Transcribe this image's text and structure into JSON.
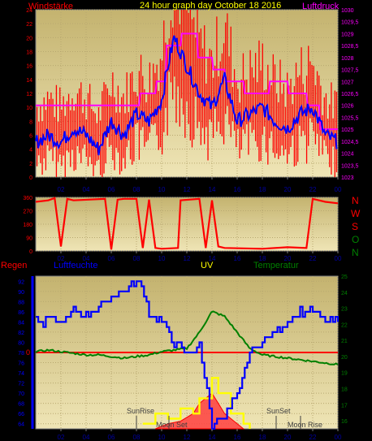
{
  "colors": {
    "plot_bg_top": "#c6b676",
    "plot_bg_bottom": "#f0e6b8",
    "wind": "#ff0000",
    "gust": "#ff0000",
    "pressure": "#ff00ff",
    "avg": "#0000ff",
    "direction": "#ff0000",
    "humidity": "#0000ff",
    "temperature": "#008000",
    "rain": "#ff0000",
    "uv": "#ffff00",
    "solar": "#ff0000",
    "label_red": "#ff0000",
    "label_magenta": "#ff00ff",
    "label_yellow": "#ffff00",
    "label_green": "#008000",
    "label_blue": "#0000ff",
    "tick": "#0000a0"
  },
  "header": {
    "wind_label": "Windstärke",
    "title": "24 hour graph day  October 18 2016",
    "pressure_label": "Luftdruck"
  },
  "panel2": {
    "compass": [
      "N",
      "W",
      "S",
      "O",
      "N"
    ]
  },
  "panel3": {
    "rain_label": "Regen",
    "humidity_label": "Luftfeuchte",
    "uv_label": "UV",
    "temp_label": "Temperatur",
    "sunrise": "SunRise",
    "moonset": "Moon Set",
    "sunset": "SunSet",
    "moonrise": "Moon Rise"
  },
  "chart_data": [
    {
      "type": "line",
      "x_ticks": [
        "02",
        "04",
        "06",
        "08",
        "10",
        "12",
        "14",
        "16",
        "18",
        "20",
        "22",
        "00"
      ],
      "y_left_ticks": [
        "0",
        "2",
        "4",
        "6",
        "8",
        "10",
        "12",
        "14",
        "16",
        "18",
        "20",
        "22",
        "24"
      ],
      "y_left_range": [
        0,
        24
      ],
      "y_right_ticks": [
        "1023",
        "1023,5",
        "1024",
        "1024,5",
        "1025",
        "1025,5",
        "1026",
        "1026,5",
        "1027",
        "1027,5",
        "1028",
        "1028,5",
        "1029",
        "1029,5",
        "1030"
      ],
      "y_right_range": [
        1023,
        1030
      ],
      "series": [
        {
          "name": "Windstärke",
          "axis": "left",
          "hours": [
            0,
            1,
            2,
            3,
            4,
            5,
            6,
            7,
            8,
            9,
            10,
            10.5,
            11,
            11.5,
            12,
            13,
            14,
            15,
            16,
            17,
            18,
            19,
            20,
            21,
            22,
            23,
            24
          ],
          "values": [
            5,
            6,
            5,
            7,
            6,
            4,
            8,
            6,
            9,
            8,
            11,
            16,
            20,
            18,
            16,
            12,
            10,
            14,
            8,
            9,
            10,
            8,
            7,
            9,
            10,
            6,
            5
          ]
        },
        {
          "name": "Luftdruck",
          "axis": "right",
          "hours": [
            0,
            2,
            6,
            7,
            8.2,
            8.3,
            9.5,
            9.6,
            10.3,
            10.4,
            11.5,
            11.6,
            12.8,
            12.9,
            14,
            14.1,
            15,
            15.1,
            16.5,
            16.6,
            18.5,
            18.6,
            20,
            20.1,
            21.5,
            21.6,
            22.5,
            22.6,
            24
          ],
          "values": [
            1026,
            1026,
            1026,
            1026,
            1026,
            1026.5,
            1026.5,
            1027,
            1027,
            1028.5,
            1028.5,
            1029,
            1029,
            1028,
            1028,
            1027.5,
            1027.5,
            1027,
            1027,
            1026.5,
            1026.5,
            1027,
            1027,
            1026.5,
            1026.5,
            1026,
            1026,
            1025,
            1025
          ]
        }
      ]
    },
    {
      "type": "line",
      "x_ticks": [
        "02",
        "04",
        "06",
        "08",
        "10",
        "12",
        "14",
        "16",
        "18",
        "20",
        "22",
        "00"
      ],
      "y_ticks": [
        "0",
        "90",
        "180",
        "270",
        "360"
      ],
      "y_range": [
        0,
        360
      ],
      "series": [
        {
          "name": "direction",
          "hours": [
            0,
            1,
            1.5,
            2,
            2.5,
            3,
            5.5,
            6,
            6.5,
            7,
            8,
            8.5,
            9,
            9.5,
            10,
            11.3,
            11.5,
            13,
            13.5,
            14,
            14.5,
            15,
            18,
            20,
            21.5,
            22,
            23,
            24
          ],
          "values": [
            330,
            340,
            355,
            30,
            350,
            340,
            350,
            10,
            345,
            350,
            350,
            20,
            345,
            20,
            15,
            20,
            340,
            350,
            20,
            340,
            30,
            20,
            15,
            25,
            20,
            350,
            330,
            320
          ]
        }
      ]
    },
    {
      "type": "line",
      "x_ticks": [
        "02",
        "04",
        "06",
        "08",
        "10",
        "12",
        "14",
        "16",
        "18",
        "20",
        "22",
        "00"
      ],
      "y_left_ticks": [
        "64",
        "66",
        "68",
        "70",
        "72",
        "74",
        "76",
        "78",
        "80",
        "82",
        "84",
        "86",
        "88",
        "90",
        "92"
      ],
      "y_left_range": [
        63,
        93
      ],
      "y_right_ticks": [
        "16",
        "17",
        "18",
        "19",
        "20",
        "21",
        "22",
        "23",
        "24",
        "25"
      ],
      "y_right_range": [
        15.5,
        25
      ],
      "rain_value": "0",
      "series": [
        {
          "name": "Luftfeuchte",
          "axis": "left",
          "hours": [
            0,
            0.5,
            1,
            2,
            3,
            4,
            5,
            6,
            7,
            8,
            8.5,
            9,
            10,
            11,
            12,
            13,
            13.5,
            14,
            15,
            16,
            17,
            18,
            19,
            20,
            21,
            22,
            23,
            24
          ],
          "values": [
            85,
            83,
            85,
            84,
            86,
            85,
            87,
            89,
            90,
            92,
            90,
            86,
            84,
            80,
            78,
            79,
            72,
            64,
            65,
            70,
            78,
            80,
            82,
            84,
            86,
            86,
            84,
            84
          ]
        },
        {
          "name": "Temperatur",
          "axis": "right",
          "hours": [
            0,
            1,
            2,
            3,
            4,
            5,
            6,
            7,
            8,
            9,
            10,
            11,
            12,
            13,
            14,
            15,
            16,
            17,
            18,
            19,
            20,
            21,
            22,
            23,
            24
          ],
          "values": [
            20.3,
            20.4,
            20.3,
            20.2,
            20.1,
            20.1,
            20,
            19.9,
            20,
            20.1,
            20.3,
            20.4,
            20.5,
            21.5,
            22.8,
            22.5,
            21.5,
            20.5,
            20.1,
            20,
            19.9,
            19.8,
            19.7,
            19.6,
            19.5
          ]
        },
        {
          "name": "UV",
          "axis": "left",
          "hours": [
            8.5,
            9.5,
            10.5,
            11.5,
            12.5,
            13,
            14,
            14.5,
            15.5,
            16.5,
            17
          ],
          "values": [
            64,
            66,
            65,
            67,
            66,
            69,
            73,
            70,
            66,
            64,
            63
          ]
        },
        {
          "name": "Solar",
          "axis": "left",
          "hours": [
            9.5,
            10.5,
            11.5,
            12.5,
            13,
            13.5,
            14,
            14.5,
            15,
            15.5,
            16.5
          ],
          "values": [
            63,
            64,
            64.5,
            66,
            68,
            69,
            70,
            68,
            66,
            65,
            63
          ]
        }
      ]
    }
  ]
}
